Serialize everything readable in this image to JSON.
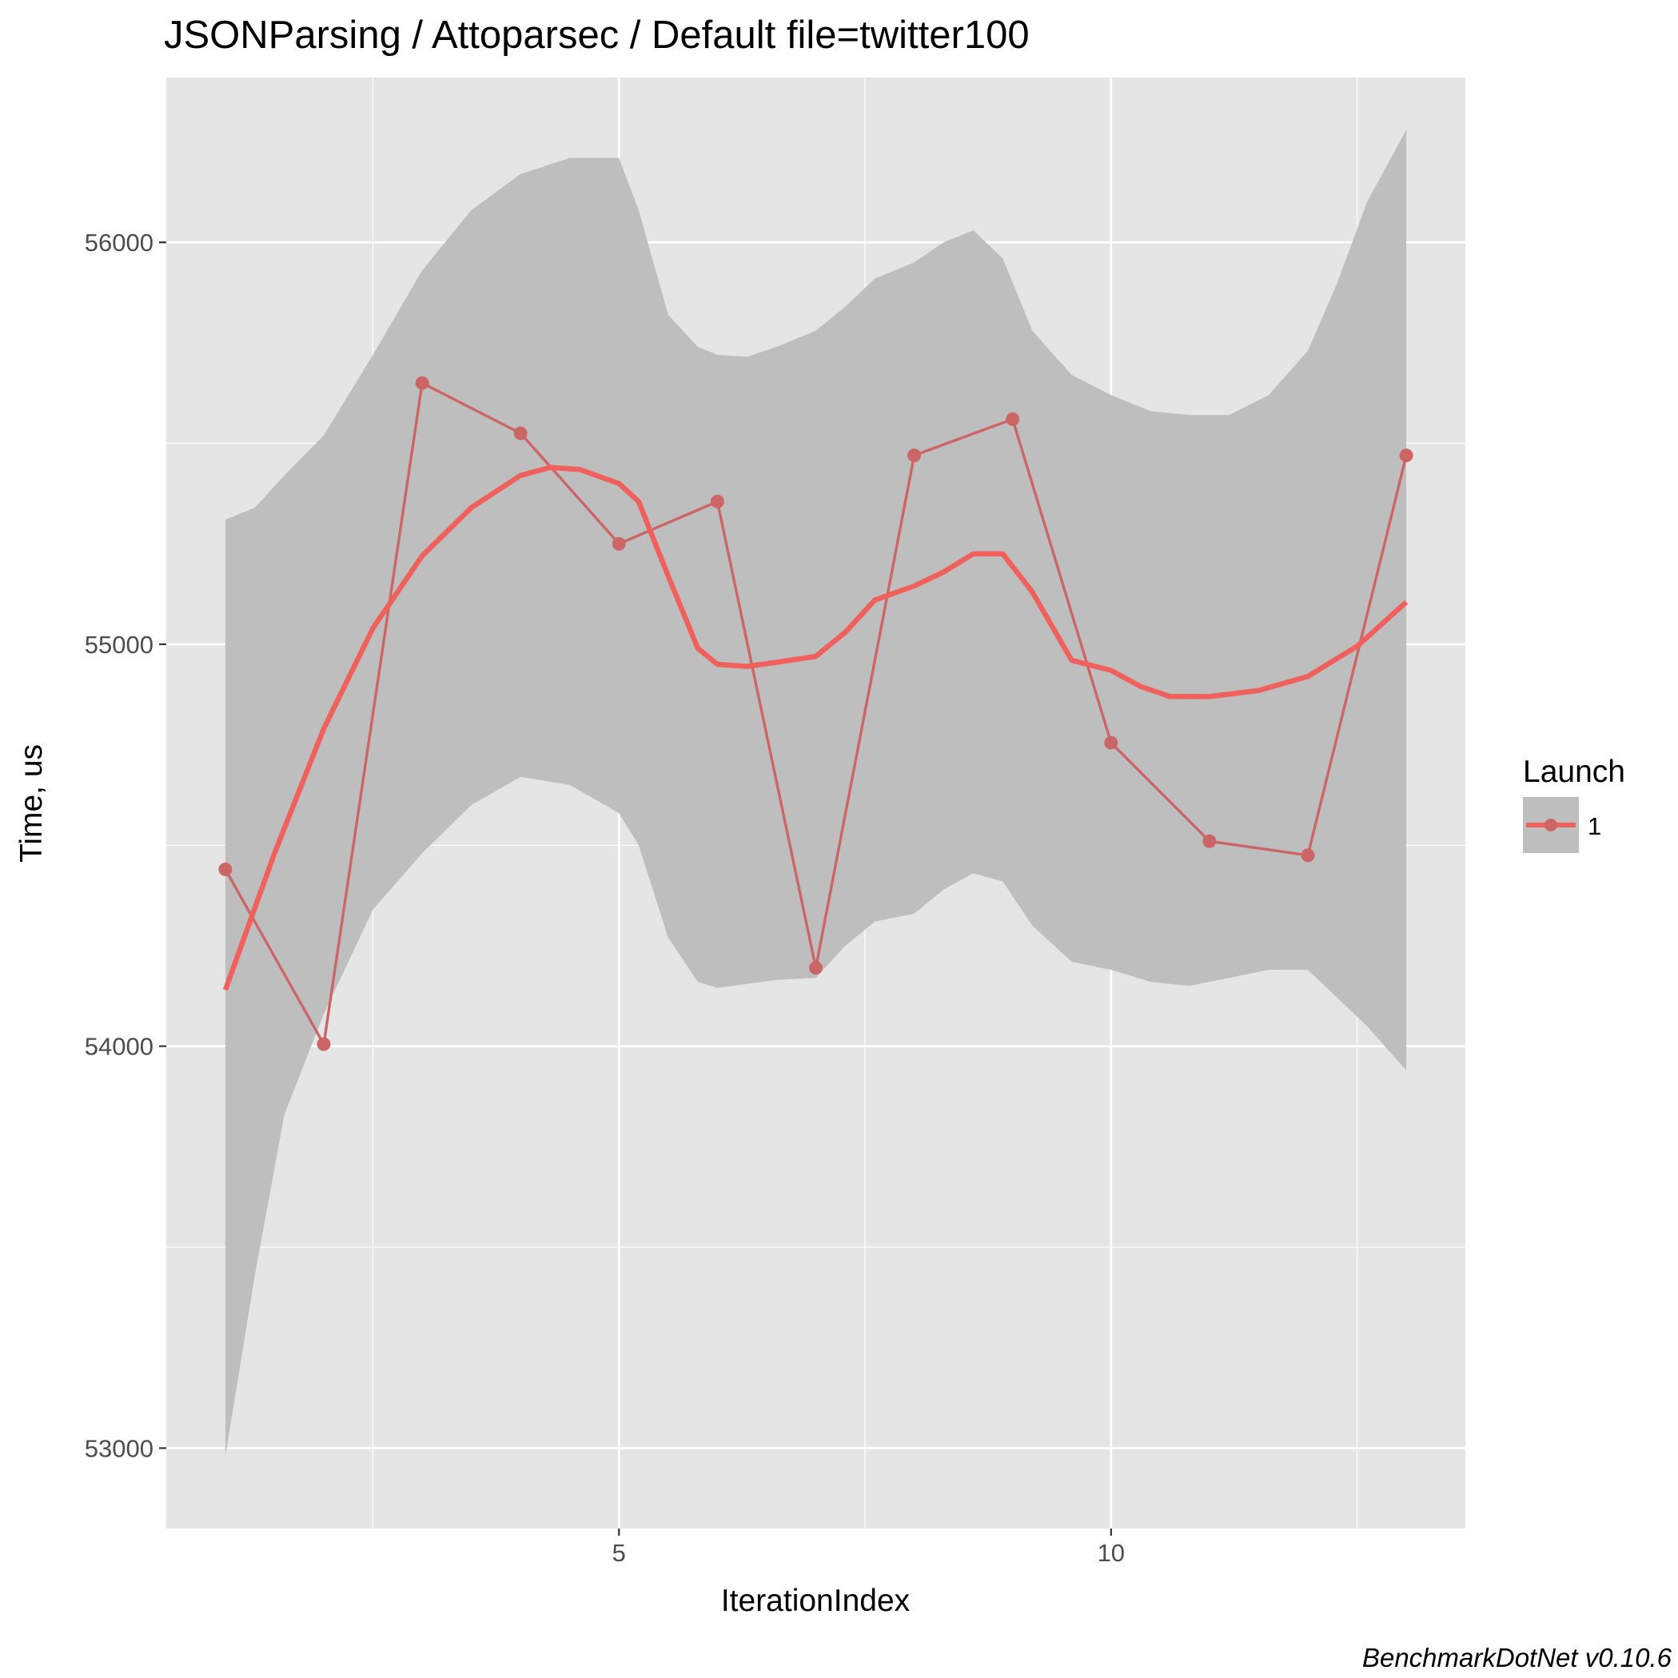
{
  "chart_data": {
    "type": "line",
    "title": "JSONParsing / Attoparsec / Default file=twitter100",
    "xlabel": "IterationIndex",
    "ylabel": "Time, us",
    "caption": "BenchmarkDotNet v0.10.6",
    "xlim": [
      0.4,
      13.6
    ],
    "ylim": [
      52800,
      56410
    ],
    "x_ticks": [
      5,
      10
    ],
    "x_tick_labels": [
      "5",
      "10"
    ],
    "y_ticks": [
      53000,
      54000,
      55000,
      56000
    ],
    "y_tick_labels": [
      "53000",
      "54000",
      "55000",
      "56000"
    ],
    "grid": true,
    "legend_position": "right",
    "legend_title": "Launch",
    "colors": {
      "panel": "#e5e5e5",
      "grid": "#ffffff",
      "ribbon": "#bebebe",
      "series": "#cc6666",
      "smooth": "#f0605d"
    },
    "series": [
      {
        "name": "1",
        "x": [
          1,
          2,
          3,
          4,
          5,
          6,
          7,
          8,
          9,
          10,
          11,
          12,
          13
        ],
        "y": [
          54440,
          54005,
          55650,
          55525,
          55250,
          55355,
          54195,
          55470,
          55560,
          54755,
          54510,
          54475,
          55470
        ]
      }
    ],
    "smooth": {
      "x": [
        1,
        1.5,
        2,
        2.5,
        3,
        3.5,
        4,
        4.3,
        4.6,
        5,
        5.2,
        5.5,
        5.8,
        6,
        6.3,
        6.6,
        7,
        7.3,
        7.6,
        8,
        8.3,
        8.6,
        8.9,
        9.2,
        9.6,
        10,
        10.3,
        10.6,
        11,
        11.5,
        12,
        12.5,
        13
      ],
      "y": [
        54140,
        54480,
        54790,
        55040,
        55220,
        55340,
        55420,
        55440,
        55435,
        55400,
        55355,
        55170,
        54990,
        54950,
        54945,
        54955,
        54970,
        55030,
        55110,
        55145,
        55180,
        55225,
        55225,
        55130,
        54960,
        54935,
        54895,
        54870,
        54870,
        54885,
        54920,
        54995,
        55105
      ]
    },
    "ribbon": {
      "x": [
        1,
        1.3,
        1.6,
        2,
        2.5,
        3,
        3.5,
        4,
        4.5,
        5,
        5.2,
        5.5,
        5.8,
        6,
        6.3,
        6.6,
        7,
        7.3,
        7.6,
        8,
        8.3,
        8.6,
        8.9,
        9.2,
        9.6,
        10,
        10.4,
        10.8,
        11.2,
        11.6,
        12,
        12.3,
        12.6,
        13
      ],
      "upper": [
        55310,
        55340,
        55420,
        55520,
        55720,
        55930,
        56080,
        56170,
        56210,
        56210,
        56080,
        55820,
        55740,
        55720,
        55715,
        55740,
        55780,
        55840,
        55910,
        55950,
        56000,
        56030,
        55960,
        55780,
        55670,
        55620,
        55580,
        55570,
        55570,
        55620,
        55730,
        55900,
        56100,
        56280
      ],
      "lower": [
        52980,
        53430,
        53830,
        54080,
        54340,
        54480,
        54600,
        54670,
        54650,
        54580,
        54500,
        54270,
        54160,
        54145,
        54155,
        54165,
        54170,
        54250,
        54310,
        54330,
        54390,
        54430,
        54410,
        54300,
        54210,
        54190,
        54160,
        54150,
        54170,
        54190,
        54190,
        54120,
        54050,
        53940
      ]
    }
  }
}
